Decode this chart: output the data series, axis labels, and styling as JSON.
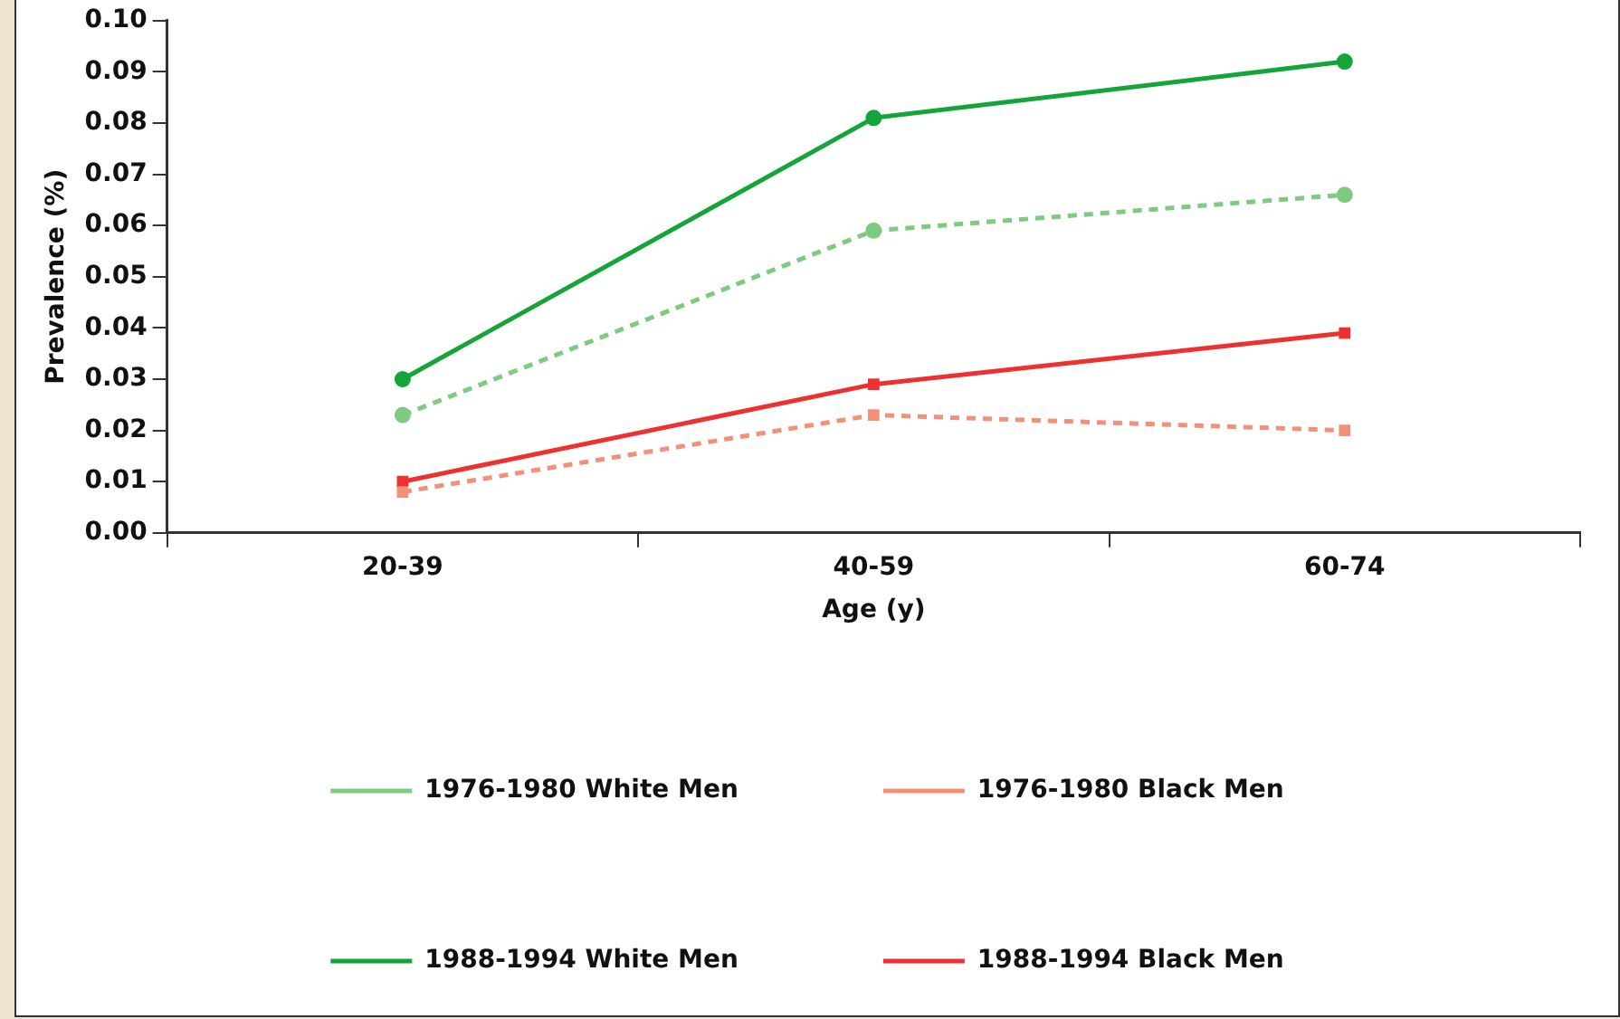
{
  "chart_data": {
    "type": "line",
    "xlabel": "Age (y)",
    "ylabel": "Prevalence (%)",
    "categories": [
      "20-39",
      "40-59",
      "60-74"
    ],
    "ylim": [
      0,
      0.1
    ],
    "yticks": [
      {
        "value": 0,
        "label": "0.00"
      },
      {
        "value": 0.01,
        "label": "0.01"
      },
      {
        "value": 0.02,
        "label": "0.02"
      },
      {
        "value": 0.03,
        "label": "0.03"
      },
      {
        "value": 0.04,
        "label": "0.04"
      },
      {
        "value": 0.05,
        "label": "0.05"
      },
      {
        "value": 0.06,
        "label": "0.06"
      },
      {
        "value": 0.07,
        "label": "0.07"
      },
      {
        "value": 0.08,
        "label": "0.08"
      },
      {
        "value": 0.09,
        "label": "0.09"
      },
      {
        "value": 0.1,
        "label": "0.10"
      }
    ],
    "grid": false,
    "legend": "bottom",
    "series": [
      {
        "name": "1976-1980 White Men",
        "color": "#7ccb7e",
        "values": [
          0.023,
          0.059,
          0.066
        ],
        "marker": "circle",
        "line_style": "dashed"
      },
      {
        "name": "1976-1980 Black Men",
        "color": "#f39178",
        "values": [
          0.008,
          0.023,
          0.02
        ],
        "marker": "square",
        "line_style": "dashed"
      },
      {
        "name": "1988-1994 White Men",
        "color": "#13a538",
        "values": [
          0.03,
          0.081,
          0.092
        ],
        "marker": "circle",
        "line_style": "solid"
      },
      {
        "name": "1988-1994 Black Men",
        "color": "#ee3030",
        "values": [
          0.01,
          0.029,
          0.039
        ],
        "marker": "square",
        "line_style": "solid"
      }
    ]
  }
}
